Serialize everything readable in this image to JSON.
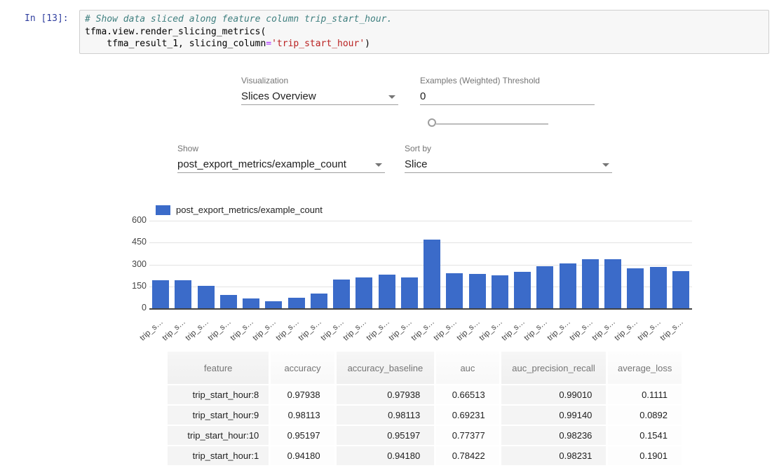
{
  "code_cell": {
    "prompt": "In [13]:",
    "line1_comment": "# Show data sliced along feature column trip_start_hour.",
    "line2": "tfma.view.render_slicing_metrics(",
    "line3_pre": "    tfma_result_1, slicing_column",
    "line3_op": "=",
    "line3_str": "'trip_start_hour'",
    "line3_end": ")"
  },
  "controls": {
    "visualization": {
      "label": "Visualization",
      "value": "Slices Overview"
    },
    "threshold": {
      "label": "Examples (Weighted) Threshold",
      "value": "0",
      "slider_pos": "0"
    },
    "show": {
      "label": "Show",
      "value": "post_export_metrics/example_count"
    },
    "sort": {
      "label": "Sort by",
      "value": "Slice"
    }
  },
  "chart_data": {
    "type": "bar",
    "title": "",
    "legend": "post_export_metrics/example_count",
    "legend_position": "top",
    "bar_color": "#3b6bc9",
    "grid": true,
    "ylim": [
      0,
      600
    ],
    "yticks": [
      0,
      150,
      300,
      450,
      600
    ],
    "xlabel": "",
    "ylabel": "",
    "categories": [
      "trip_s…",
      "trip_s…",
      "trip_s…",
      "trip_s…",
      "trip_s…",
      "trip_s…",
      "trip_s…",
      "trip_s…",
      "trip_s…",
      "trip_s…",
      "trip_s…",
      "trip_s…",
      "trip_s…",
      "trip_s…",
      "trip_s…",
      "trip_s…",
      "trip_s…",
      "trip_s…",
      "trip_s…",
      "trip_s…",
      "trip_s…",
      "trip_s…",
      "trip_s…",
      "trip_s…"
    ],
    "values": [
      192,
      192,
      154,
      93,
      65,
      49,
      70,
      102,
      198,
      211,
      232,
      211,
      470,
      240,
      234,
      224,
      250,
      289,
      309,
      338,
      338,
      273,
      281,
      255
    ]
  },
  "table": {
    "headers": [
      "feature",
      "accuracy",
      "accuracy_baseline",
      "auc",
      "auc_precision_recall",
      "average_loss"
    ],
    "rows": [
      [
        "trip_start_hour:8",
        "0.97938",
        "0.97938",
        "0.66513",
        "0.99010",
        "0.1111"
      ],
      [
        "trip_start_hour:9",
        "0.98113",
        "0.98113",
        "0.69231",
        "0.99140",
        "0.0892"
      ],
      [
        "trip_start_hour:10",
        "0.95197",
        "0.95197",
        "0.77377",
        "0.98236",
        "0.1541"
      ],
      [
        "trip_start_hour:1",
        "0.94180",
        "0.94180",
        "0.78422",
        "0.98231",
        "0.1901"
      ]
    ]
  }
}
